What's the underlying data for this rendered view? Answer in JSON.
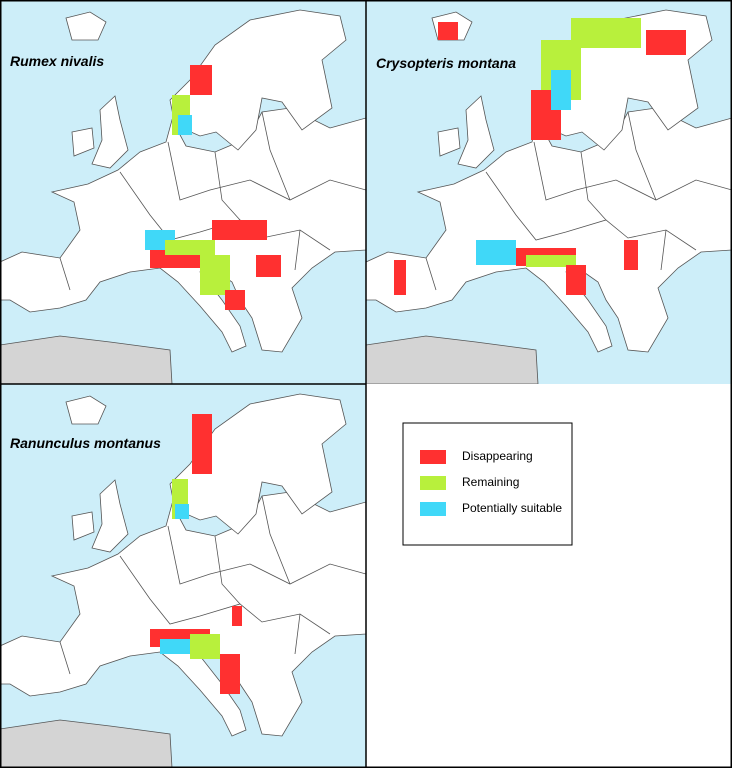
{
  "panels": [
    {
      "title": "Rumex nivalis"
    },
    {
      "title": "Crysopteris montana"
    },
    {
      "title": "Ranunculus montanus"
    }
  ],
  "legend": {
    "items": [
      {
        "label": "Disappearing",
        "color": "#ff3030"
      },
      {
        "label": "Remaining",
        "color": "#b8f03c"
      },
      {
        "label": "Potentially suitable",
        "color": "#40d8f8"
      }
    ]
  }
}
